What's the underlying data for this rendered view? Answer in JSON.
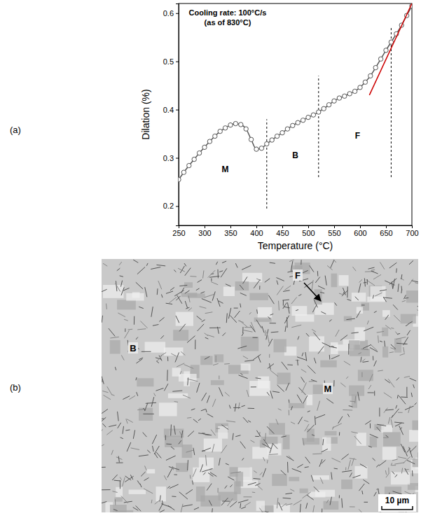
{
  "chart_data": {
    "type": "line",
    "xlabel": "Temperature (°C)",
    "ylabel": "Dilation (%)",
    "annotation": [
      "Cooling rate: 100°C/s",
      "(as of 830°C)"
    ],
    "x": [
      250,
      260,
      270,
      280,
      290,
      300,
      310,
      320,
      330,
      340,
      350,
      360,
      370,
      380,
      390,
      400,
      410,
      420,
      430,
      440,
      450,
      460,
      470,
      480,
      490,
      500,
      510,
      520,
      530,
      540,
      550,
      560,
      570,
      580,
      590,
      600,
      610,
      620,
      630,
      640,
      650,
      660,
      670,
      680,
      690,
      700
    ],
    "series": [
      {
        "color": "#555555",
        "marker": "circle",
        "values": [
          0.255,
          0.27,
          0.284,
          0.297,
          0.31,
          0.322,
          0.334,
          0.345,
          0.355,
          0.362,
          0.368,
          0.371,
          0.369,
          0.36,
          0.338,
          0.318,
          0.32,
          0.329,
          0.337,
          0.345,
          0.352,
          0.36,
          0.367,
          0.373,
          0.378,
          0.384,
          0.389,
          0.395,
          0.402,
          0.41,
          0.418,
          0.424,
          0.428,
          0.433,
          0.438,
          0.446,
          0.457,
          0.47,
          0.487,
          0.505,
          0.523,
          0.54,
          0.557,
          0.575,
          0.595,
          0.615
        ]
      }
    ],
    "lines": [
      {
        "x": [
          618,
          700
        ],
        "y": [
          0.43,
          0.62
        ],
        "color": "#cc0000"
      }
    ],
    "vlines": [
      {
        "x": 420,
        "y": [
          0.195,
          0.38
        ]
      },
      {
        "x": 520,
        "y": [
          0.26,
          0.47
        ]
      },
      {
        "x": 660,
        "y": [
          0.26,
          0.57
        ]
      }
    ],
    "regions": [
      {
        "label": "M",
        "x": 340,
        "y": 0.27
      },
      {
        "label": "B",
        "x": 475,
        "y": 0.3
      },
      {
        "label": "F",
        "x": 595,
        "y": 0.34
      }
    ],
    "xlim": [
      250,
      700
    ],
    "xticks": [
      250,
      300,
      350,
      400,
      450,
      500,
      550,
      600,
      650,
      700
    ],
    "ylim": [
      0.16,
      0.62
    ],
    "yticks": [
      0.2,
      0.3,
      0.4,
      0.5,
      0.6
    ],
    "grid": false
  },
  "panels": [
    "(a)",
    "(b)"
  ],
  "micrograph": {
    "labels": [
      "F",
      "B",
      "M"
    ],
    "scale_bar": "10 µm"
  }
}
